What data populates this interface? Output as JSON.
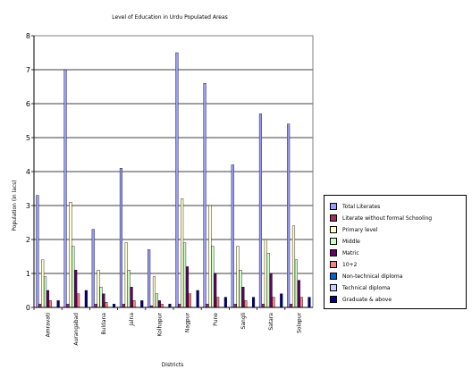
{
  "chart_data": {
    "type": "bar",
    "title": "Level of Education in Urdu Populated Areas",
    "xlabel": "Districts",
    "ylabel": "Population (in lacs)",
    "ylim": [
      0,
      8
    ],
    "yticks": [
      "0",
      "1",
      "2",
      "3",
      "4",
      "5",
      "6",
      "7",
      "8"
    ],
    "grid": true,
    "legend_position": "right",
    "categories": [
      "Amravati",
      "Aurangabad",
      "Buldana",
      "Jalna",
      "Kolhapur",
      "Nagpur",
      "Pune",
      "Sangli",
      "Satara",
      "Solapur"
    ],
    "series": [
      {
        "name": "Total Literates",
        "color": "#9999ff",
        "values": [
          3.3,
          7.0,
          2.3,
          4.1,
          1.7,
          7.5,
          6.6,
          4.2,
          5.7,
          5.4
        ]
      },
      {
        "name": "Literate without formal Schooling",
        "color": "#993366",
        "values": [
          0.1,
          0.1,
          0.1,
          0.1,
          0.05,
          0.1,
          0.1,
          0.1,
          0.1,
          0.1
        ]
      },
      {
        "name": "Primary level",
        "color": "#ffffcc",
        "values": [
          1.4,
          3.1,
          1.1,
          1.9,
          0.9,
          3.2,
          3.0,
          1.8,
          2.0,
          2.4
        ]
      },
      {
        "name": "Middle",
        "color": "#ccffcc",
        "values": [
          0.9,
          1.8,
          0.6,
          1.1,
          0.4,
          1.9,
          1.8,
          1.1,
          1.6,
          1.4
        ]
      },
      {
        "name": "Matric",
        "color": "#660066",
        "values": [
          0.5,
          1.1,
          0.4,
          0.6,
          0.2,
          1.2,
          1.0,
          0.6,
          1.0,
          0.8
        ]
      },
      {
        "name": "10+2",
        "color": "#ff8080",
        "values": [
          0.2,
          0.4,
          0.15,
          0.2,
          0.1,
          0.4,
          0.3,
          0.2,
          0.3,
          0.3
        ]
      },
      {
        "name": "Non-technical diploma",
        "color": "#0066cc",
        "values": [
          0.0,
          0.0,
          0.0,
          0.0,
          0.0,
          0.0,
          0.0,
          0.0,
          0.0,
          0.0
        ]
      },
      {
        "name": "Technical diploma",
        "color": "#ccccff",
        "values": [
          0.0,
          0.0,
          0.0,
          0.0,
          0.0,
          0.0,
          0.0,
          0.0,
          0.0,
          0.0
        ]
      },
      {
        "name": "Graduate & above",
        "color": "#000080",
        "values": [
          0.2,
          0.5,
          0.1,
          0.2,
          0.1,
          0.5,
          0.3,
          0.3,
          0.4,
          0.3
        ]
      }
    ]
  }
}
